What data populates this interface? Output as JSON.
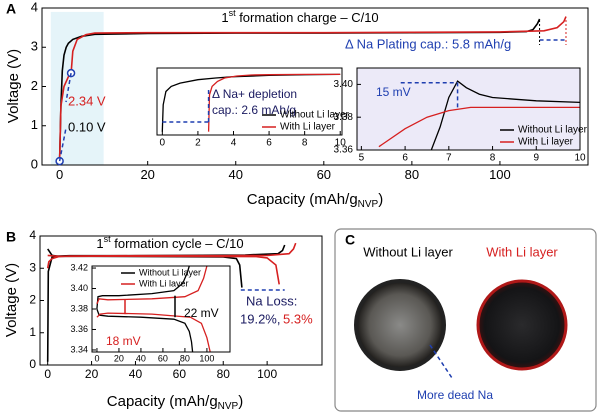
{
  "chart_data": [
    {
      "type": "line",
      "panel_label": "A",
      "title_pre": "1",
      "title_sup": "st",
      "title_post": " formation charge – C/10",
      "xlabel": "Capacity (mAh/g",
      "xlabel_sub": "NVP",
      "xlabel_end": ")",
      "ylabel": "Voltage (V)",
      "xlim": [
        -4,
        120
      ],
      "xticks": [
        0,
        20,
        40,
        60,
        80,
        100
      ],
      "ylim": [
        0,
        4
      ],
      "yticks": [
        0,
        1,
        2,
        3,
        4
      ],
      "series": [
        {
          "color": "#000000",
          "x": [
            0,
            0.3,
            0.6,
            1,
            1.5,
            2,
            3,
            5,
            8,
            20,
            40,
            60,
            80,
            100,
            106,
            107.5,
            108.5,
            109
          ],
          "values": [
            0.1,
            1.5,
            2.4,
            2.8,
            3.0,
            3.1,
            3.2,
            3.28,
            3.33,
            3.35,
            3.36,
            3.36,
            3.37,
            3.38,
            3.4,
            3.45,
            3.6,
            3.72
          ]
        },
        {
          "color": "#d62020",
          "x": [
            0,
            0.3,
            1,
            2,
            2.6,
            3,
            4,
            6,
            8,
            20,
            40,
            60,
            80,
            100,
            110,
            113,
            114.5,
            115
          ],
          "values": [
            0.1,
            1.5,
            2.0,
            2.25,
            2.34,
            2.9,
            3.2,
            3.32,
            3.36,
            3.37,
            3.37,
            3.37,
            3.38,
            3.39,
            3.42,
            3.5,
            3.65,
            3.78
          ]
        }
      ],
      "markers": [
        {
          "x": 0,
          "y": 0.1
        },
        {
          "x": 2.6,
          "y": 2.34
        }
      ],
      "annotations": [
        {
          "text": "2.34 V",
          "color": "#d62020"
        },
        {
          "text": "0.10 V",
          "color": "#000000"
        },
        {
          "text": "Δ Na Plating cap.: 5.8 mAh/g",
          "color": "#1f3fb0"
        }
      ]
    },
    {
      "type": "line",
      "legend": "lower right",
      "xlim": [
        -0.3,
        10.1
      ],
      "xticks": [
        0,
        2,
        4,
        6,
        8,
        10
      ],
      "ylim": [
        1.5,
        3.5
      ],
      "series": [
        {
          "name": "Without Li layer",
          "color": "#000000",
          "x": [
            0,
            0.05,
            0.2,
            0.5,
            1,
            2,
            3,
            4,
            6,
            8,
            10
          ],
          "values": [
            1.6,
            2.4,
            2.8,
            2.95,
            3.05,
            3.15,
            3.2,
            3.24,
            3.28,
            3.3,
            3.31
          ]
        },
        {
          "name": "With Li layer",
          "color": "#d62020",
          "x": [
            2.6,
            2.65,
            2.8,
            3.1,
            3.5,
            4.2,
            5,
            6,
            8,
            10
          ],
          "values": [
            1.6,
            2.7,
            2.95,
            3.1,
            3.2,
            3.26,
            3.29,
            3.3,
            3.31,
            3.31
          ]
        }
      ],
      "annotations": [
        {
          "text": "Δ Na+ depletion",
          "color": "#1a1a60"
        },
        {
          "text": "cap.: 2.6 mAh/g",
          "color": "#1a1a60"
        }
      ]
    },
    {
      "type": "line",
      "legend": "lower right",
      "xlim": [
        4.9,
        10
      ],
      "xticks": [
        5,
        6,
        7,
        8,
        9,
        10
      ],
      "ylim": [
        3.36,
        3.41
      ],
      "yticks": [
        3.36,
        3.38,
        {
          "value": 3.4,
          "label": "3.40"
        }
      ],
      "series": [
        {
          "name": "Without Li layer",
          "color": "#000000",
          "x": [
            6.6,
            6.8,
            7.0,
            7.2,
            7.4,
            7.7,
            8,
            8.5,
            9,
            10
          ],
          "values": [
            3.36,
            3.374,
            3.392,
            3.402,
            3.398,
            3.394,
            3.392,
            3.391,
            3.39,
            3.389
          ]
        },
        {
          "name": "With Li layer",
          "color": "#d62020",
          "x": [
            5.4,
            6,
            6.5,
            7,
            7.5,
            8,
            9,
            10
          ],
          "values": [
            3.362,
            3.373,
            3.38,
            3.384,
            3.386,
            3.386,
            3.386,
            3.386
          ]
        }
      ],
      "annotations": [
        {
          "text": "15 mV",
          "color": "#1f3fb0"
        }
      ]
    },
    {
      "type": "line",
      "panel_label": "B",
      "title_pre": "1",
      "title_sup": "st",
      "title_post": " formation cycle – C/10",
      "xlabel": "Capacity (mAh/g",
      "xlabel_sub": "NVP",
      "xlabel_end": ")",
      "ylabel": "Voltage (V)",
      "xlim": [
        -3.5,
        125
      ],
      "xticks": [
        0,
        20,
        40,
        60,
        80,
        100
      ],
      "ylim": [
        0,
        4
      ],
      "yticks": [
        0,
        1,
        2,
        3,
        4
      ],
      "series": [
        {
          "color": "#000000",
          "x": [
            0,
            0.3,
            2,
            5,
            10,
            30,
            60,
            90,
            105,
            107,
            108
          ],
          "values": [
            0.1,
            2.9,
            3.35,
            3.38,
            3.39,
            3.39,
            3.4,
            3.41,
            3.45,
            3.55,
            3.72
          ]
        },
        {
          "color": "#000000",
          "x": [
            0,
            2,
            5,
            20,
            50,
            80,
            86,
            87.5,
            88.5
          ],
          "values": [
            3.6,
            3.4,
            3.37,
            3.37,
            3.36,
            3.35,
            3.3,
            3.1,
            2.4
          ]
        },
        {
          "color": "#d62020",
          "x": [
            0,
            0.5,
            2,
            5,
            10,
            40,
            80,
            100,
            110,
            112,
            113
          ],
          "values": [
            3.0,
            3.2,
            3.3,
            3.36,
            3.38,
            3.39,
            3.39,
            3.4,
            3.45,
            3.6,
            3.78
          ]
        },
        {
          "color": "#d62020",
          "x": [
            0,
            5,
            20,
            60,
            95,
            100,
            104,
            105.5
          ],
          "values": [
            3.4,
            3.37,
            3.375,
            3.37,
            3.36,
            3.32,
            3.1,
            2.5
          ]
        }
      ],
      "annotations": [
        {
          "text": "Na Loss:",
          "color": "#1a1a60"
        },
        {
          "text": "19.2%,",
          "color": "#1a1a60"
        },
        {
          "text": "5.3%",
          "color": "#d62020"
        }
      ]
    },
    {
      "type": "line",
      "legend": "upper center",
      "xlim": [
        -4.5,
        121
      ],
      "xticks": [
        0,
        20,
        40,
        60,
        80,
        100
      ],
      "ylim": [
        3.338,
        3.422
      ],
      "yticks": [
        3.34,
        3.36,
        3.38,
        {
          "value": 3.4,
          "label": "3.40"
        },
        3.42
      ],
      "series": [
        {
          "name": "Without Li layer",
          "color": "#000000",
          "x": [
            0,
            1,
            5,
            20,
            50,
            70,
            78,
            82,
            84
          ],
          "values": [
            3.38,
            3.392,
            3.393,
            3.393,
            3.395,
            3.398,
            3.405,
            3.415,
            3.422
          ]
        },
        {
          "color": "#000000",
          "x": [
            0,
            2,
            10,
            40,
            70,
            80,
            84,
            86,
            87
          ],
          "values": [
            3.38,
            3.374,
            3.373,
            3.372,
            3.37,
            3.366,
            3.358,
            3.348,
            3.338
          ]
        },
        {
          "name": "With Li layer",
          "color": "#d62020",
          "x": [
            0,
            2,
            10,
            50,
            80,
            92,
            97,
            100
          ],
          "values": [
            3.385,
            3.39,
            3.389,
            3.39,
            3.392,
            3.398,
            3.41,
            3.422
          ]
        },
        {
          "color": "#d62020",
          "x": [
            0,
            3,
            10,
            50,
            85,
            95,
            100,
            103
          ],
          "values": [
            3.372,
            3.375,
            3.376,
            3.375,
            3.372,
            3.366,
            3.352,
            3.338
          ]
        }
      ],
      "annotations": [
        {
          "text": "22 mV",
          "color": "#000000"
        },
        {
          "text": "18 mV",
          "color": "#d62020"
        }
      ]
    }
  ],
  "photo": {
    "panel_label": "C",
    "left_caption": "Without Li layer",
    "right_caption": "With Li layer",
    "annotation": "More dead Na"
  }
}
